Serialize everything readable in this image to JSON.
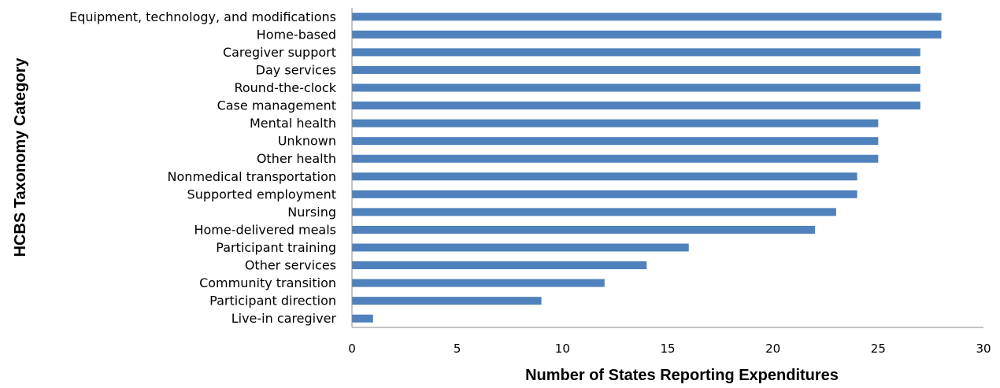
{
  "chart_data": {
    "type": "bar",
    "orientation": "horizontal",
    "xlabel": "Number of States Reporting Expenditures",
    "ylabel": "HCBS Taxonomy Category",
    "xlim": [
      0,
      30
    ],
    "xticks": [
      "0",
      "5",
      "10",
      "15",
      "20",
      "25",
      "30"
    ],
    "grid": false,
    "bar_color": "#4F81BD",
    "categories": [
      "Equipment, technology, and modifications",
      "Home-based",
      "Caregiver support",
      "Day services",
      "Round-the-clock",
      "Case management",
      "Mental health",
      "Unknown",
      "Other health",
      "Nonmedical transportation",
      "Supported employment",
      "Nursing",
      "Home-delivered meals",
      "Participant training",
      "Other services",
      "Community transition",
      "Participant direction",
      "Live-in caregiver"
    ],
    "values": [
      28,
      28,
      27,
      27,
      27,
      27,
      25,
      25,
      25,
      24,
      24,
      23,
      22,
      16,
      14,
      12,
      9,
      1
    ]
  }
}
